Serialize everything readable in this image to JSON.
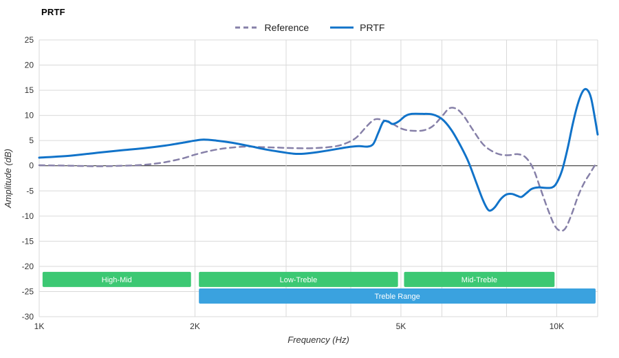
{
  "legend": [
    {
      "label": "Reference",
      "color": "#8680A8",
      "dashed": true
    },
    {
      "label": "PRTF",
      "color": "#1173C9",
      "dashed": false
    }
  ],
  "chart_data": {
    "type": "line",
    "title": "PRTF",
    "x_axis": {
      "label": "Frequency (Hz)",
      "scale": "log",
      "min": 1000,
      "max": 12000,
      "ticks": [
        {
          "value": 1000,
          "label": "1K"
        },
        {
          "value": 2000,
          "label": "2K"
        },
        {
          "value": 5000,
          "label": "5K"
        },
        {
          "value": 10000,
          "label": "10K"
        }
      ],
      "gridlines": [
        1000,
        2000,
        3000,
        4000,
        5000,
        6000,
        8000,
        10000,
        12000
      ]
    },
    "y_axis": {
      "label": "Amplitude (dB)",
      "min": -30,
      "max": 25,
      "ticks": [
        25,
        20,
        15,
        10,
        5,
        0,
        -5,
        -10,
        -15,
        -20,
        -25,
        -30
      ],
      "zero_line": 0
    },
    "bands": [
      {
        "label": "High-Mid",
        "from": 1015,
        "to": 1965,
        "center_db": -22.6,
        "color": "#3CC873",
        "text_color": "#ffffff"
      },
      {
        "label": "Low-Treble",
        "from": 2035,
        "to": 4935,
        "center_db": -22.6,
        "color": "#3CC873",
        "text_color": "#ffffff"
      },
      {
        "label": "Mid-Treble",
        "from": 5070,
        "to": 9905,
        "center_db": -22.6,
        "color": "#3CC873",
        "text_color": "#ffffff"
      },
      {
        "label": "Treble Range",
        "from": 2035,
        "to": 11890,
        "center_db": -25.9,
        "color": "#3AA2DF",
        "text_color": "#ffffff"
      }
    ],
    "series": [
      {
        "name": "Reference",
        "color": "#8680A8",
        "dashed": true,
        "points": [
          [
            1000,
            0.1
          ],
          [
            1150,
            0.0
          ],
          [
            1300,
            -0.1
          ],
          [
            1450,
            0.0
          ],
          [
            1600,
            0.2
          ],
          [
            1750,
            0.7
          ],
          [
            1900,
            1.5
          ],
          [
            2000,
            2.2
          ],
          [
            2150,
            3.0
          ],
          [
            2300,
            3.5
          ],
          [
            2500,
            3.8
          ],
          [
            2700,
            3.7
          ],
          [
            2900,
            3.6
          ],
          [
            3100,
            3.5
          ],
          [
            3400,
            3.5
          ],
          [
            3700,
            3.8
          ],
          [
            3900,
            4.4
          ],
          [
            4100,
            5.6
          ],
          [
            4300,
            7.9
          ],
          [
            4450,
            9.2
          ],
          [
            4600,
            9.1
          ],
          [
            4800,
            8.4
          ],
          [
            5000,
            7.4
          ],
          [
            5200,
            7.0
          ],
          [
            5500,
            7.0
          ],
          [
            5750,
            7.8
          ],
          [
            6000,
            9.8
          ],
          [
            6200,
            11.4
          ],
          [
            6400,
            11.3
          ],
          [
            6600,
            10.0
          ],
          [
            6900,
            7.0
          ],
          [
            7200,
            4.3
          ],
          [
            7500,
            2.9
          ],
          [
            7800,
            2.2
          ],
          [
            8100,
            2.1
          ],
          [
            8400,
            2.3
          ],
          [
            8700,
            1.7
          ],
          [
            9000,
            -0.5
          ],
          [
            9300,
            -4.5
          ],
          [
            9600,
            -8.5
          ],
          [
            9900,
            -11.8
          ],
          [
            10150,
            -12.9
          ],
          [
            10400,
            -12.4
          ],
          [
            10700,
            -9.5
          ],
          [
            11000,
            -6.0
          ],
          [
            11300,
            -3.4
          ],
          [
            11600,
            -1.5
          ],
          [
            11900,
            0.4
          ]
        ]
      },
      {
        "name": "PRTF",
        "color": "#1173C9",
        "dashed": false,
        "points": [
          [
            1000,
            1.6
          ],
          [
            1150,
            2.0
          ],
          [
            1300,
            2.6
          ],
          [
            1450,
            3.1
          ],
          [
            1600,
            3.5
          ],
          [
            1750,
            4.0
          ],
          [
            1900,
            4.6
          ],
          [
            2000,
            5.0
          ],
          [
            2080,
            5.2
          ],
          [
            2200,
            5.0
          ],
          [
            2350,
            4.6
          ],
          [
            2550,
            3.9
          ],
          [
            2750,
            3.2
          ],
          [
            2950,
            2.7
          ],
          [
            3100,
            2.4
          ],
          [
            3250,
            2.4
          ],
          [
            3450,
            2.7
          ],
          [
            3700,
            3.2
          ],
          [
            3950,
            3.7
          ],
          [
            4150,
            3.9
          ],
          [
            4300,
            3.8
          ],
          [
            4420,
            4.3
          ],
          [
            4520,
            6.5
          ],
          [
            4620,
            8.7
          ],
          [
            4720,
            8.8
          ],
          [
            4820,
            8.3
          ],
          [
            4950,
            8.8
          ],
          [
            5100,
            9.9
          ],
          [
            5250,
            10.3
          ],
          [
            5500,
            10.3
          ],
          [
            5750,
            10.2
          ],
          [
            6000,
            9.3
          ],
          [
            6250,
            7.2
          ],
          [
            6500,
            4.2
          ],
          [
            6750,
            0.8
          ],
          [
            7000,
            -3.5
          ],
          [
            7200,
            -6.8
          ],
          [
            7350,
            -8.6
          ],
          [
            7450,
            -8.9
          ],
          [
            7600,
            -8.2
          ],
          [
            7800,
            -6.6
          ],
          [
            8000,
            -5.7
          ],
          [
            8200,
            -5.6
          ],
          [
            8400,
            -6.0
          ],
          [
            8550,
            -6.2
          ],
          [
            8750,
            -5.4
          ],
          [
            8950,
            -4.6
          ],
          [
            9200,
            -4.3
          ],
          [
            9500,
            -4.4
          ],
          [
            9800,
            -4.3
          ],
          [
            10000,
            -3.4
          ],
          [
            10250,
            -0.8
          ],
          [
            10500,
            3.5
          ],
          [
            10750,
            8.5
          ],
          [
            11000,
            12.5
          ],
          [
            11250,
            14.9
          ],
          [
            11450,
            15.1
          ],
          [
            11650,
            13.5
          ],
          [
            11850,
            9.5
          ],
          [
            12000,
            6.2
          ]
        ]
      }
    ]
  }
}
